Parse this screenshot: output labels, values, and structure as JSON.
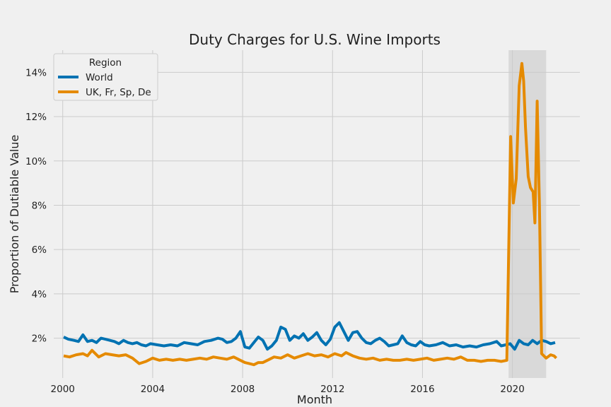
{
  "chart_data": {
    "type": "line",
    "title": "Duty Charges for U.S. Wine Imports",
    "xlabel": "Month",
    "ylabel": "Proportion of Dutiable Value",
    "x_range": [
      1999.6,
      2023.0
    ],
    "ylim": [
      0.2,
      15.0
    ],
    "x_ticks": [
      2000,
      2004,
      2008,
      2012,
      2016,
      2020
    ],
    "x_tick_labels": [
      "2000",
      "2004",
      "2008",
      "2012",
      "2016",
      "2020"
    ],
    "y_ticks": [
      2,
      4,
      6,
      8,
      10,
      12,
      14
    ],
    "y_tick_labels": [
      "2%",
      "4%",
      "6%",
      "8%",
      "10%",
      "12%",
      "14%"
    ],
    "grid": true,
    "legend": {
      "title": "Region",
      "placement": "top-left"
    },
    "highlight_span": {
      "x_start": 2019.83,
      "x_end": 2021.5,
      "color": "#d9d9d9"
    },
    "series": [
      {
        "name": "World",
        "color": "#0072b2",
        "x": [
          2000.04,
          2000.25,
          2000.5,
          2000.7,
          2000.9,
          2001.1,
          2001.3,
          2001.5,
          2001.7,
          2001.9,
          2002.1,
          2002.3,
          2002.5,
          2002.7,
          2002.9,
          2003.1,
          2003.3,
          2003.5,
          2003.7,
          2003.9,
          2004.2,
          2004.5,
          2004.8,
          2005.1,
          2005.4,
          2005.7,
          2006.0,
          2006.3,
          2006.6,
          2006.9,
          2007.1,
          2007.3,
          2007.5,
          2007.7,
          2007.9,
          2008.1,
          2008.3,
          2008.5,
          2008.7,
          2008.9,
          2009.1,
          2009.3,
          2009.5,
          2009.7,
          2009.9,
          2010.1,
          2010.3,
          2010.5,
          2010.7,
          2010.9,
          2011.1,
          2011.3,
          2011.5,
          2011.7,
          2011.9,
          2012.1,
          2012.3,
          2012.5,
          2012.7,
          2012.9,
          2013.1,
          2013.3,
          2013.5,
          2013.7,
          2013.9,
          2014.1,
          2014.3,
          2014.5,
          2014.7,
          2014.9,
          2015.1,
          2015.3,
          2015.5,
          2015.7,
          2015.9,
          2016.1,
          2016.3,
          2016.6,
          2016.9,
          2017.2,
          2017.5,
          2017.8,
          2018.1,
          2018.4,
          2018.7,
          2019.0,
          2019.3,
          2019.5,
          2019.7,
          2019.9,
          2020.1,
          2020.3,
          2020.5,
          2020.7,
          2020.9,
          2021.1,
          2021.3,
          2021.5,
          2021.7,
          2021.9
        ],
        "values": [
          2.05,
          1.95,
          1.9,
          1.85,
          2.15,
          1.85,
          1.9,
          1.8,
          2.0,
          1.95,
          1.9,
          1.85,
          1.75,
          1.9,
          1.8,
          1.75,
          1.8,
          1.7,
          1.65,
          1.75,
          1.7,
          1.65,
          1.7,
          1.65,
          1.8,
          1.75,
          1.7,
          1.85,
          1.9,
          2.0,
          1.95,
          1.8,
          1.85,
          2.0,
          2.3,
          1.6,
          1.55,
          1.8,
          2.05,
          1.9,
          1.5,
          1.65,
          1.9,
          2.5,
          2.4,
          1.9,
          2.1,
          2.0,
          2.2,
          1.9,
          2.05,
          2.25,
          1.9,
          1.7,
          1.95,
          2.5,
          2.7,
          2.3,
          1.9,
          2.25,
          2.3,
          2.0,
          1.8,
          1.75,
          1.9,
          2.0,
          1.85,
          1.65,
          1.7,
          1.75,
          2.1,
          1.8,
          1.7,
          1.65,
          1.85,
          1.7,
          1.65,
          1.7,
          1.8,
          1.65,
          1.7,
          1.6,
          1.65,
          1.6,
          1.7,
          1.75,
          1.85,
          1.65,
          1.7,
          1.75,
          1.5,
          1.9,
          1.75,
          1.7,
          1.9,
          1.75,
          1.9,
          1.85,
          1.75,
          1.8
        ]
      },
      {
        "name": "UK, Fr, Sp, De",
        "color": "#e58a00",
        "x": [
          2000.04,
          2000.3,
          2000.6,
          2000.9,
          2001.1,
          2001.3,
          2001.6,
          2001.9,
          2002.2,
          2002.5,
          2002.8,
          2003.1,
          2003.4,
          2003.7,
          2004.0,
          2004.3,
          2004.6,
          2004.9,
          2005.2,
          2005.5,
          2005.8,
          2006.1,
          2006.4,
          2006.7,
          2007.0,
          2007.3,
          2007.6,
          2007.9,
          2008.1,
          2008.3,
          2008.5,
          2008.7,
          2008.9,
          2009.1,
          2009.4,
          2009.7,
          2010.0,
          2010.3,
          2010.6,
          2010.9,
          2011.2,
          2011.5,
          2011.8,
          2012.1,
          2012.4,
          2012.6,
          2012.9,
          2013.2,
          2013.5,
          2013.8,
          2014.1,
          2014.4,
          2014.7,
          2015.0,
          2015.3,
          2015.6,
          2015.9,
          2016.2,
          2016.5,
          2016.8,
          2017.1,
          2017.4,
          2017.7,
          2018.0,
          2018.3,
          2018.6,
          2018.9,
          2019.2,
          2019.5,
          2019.75,
          2019.92,
          2020.04,
          2020.17,
          2020.3,
          2020.42,
          2020.5,
          2020.58,
          2020.7,
          2020.8,
          2020.92,
          2021.0,
          2021.1,
          2021.2,
          2021.3,
          2021.5,
          2021.7,
          2021.85,
          2021.95
        ],
        "values": [
          1.2,
          1.15,
          1.25,
          1.3,
          1.2,
          1.45,
          1.15,
          1.3,
          1.25,
          1.2,
          1.25,
          1.1,
          0.85,
          0.95,
          1.1,
          1.0,
          1.05,
          1.0,
          1.05,
          1.0,
          1.05,
          1.1,
          1.05,
          1.15,
          1.1,
          1.05,
          1.15,
          1.0,
          0.9,
          0.85,
          0.8,
          0.9,
          0.9,
          1.0,
          1.15,
          1.1,
          1.25,
          1.1,
          1.2,
          1.3,
          1.2,
          1.25,
          1.15,
          1.3,
          1.2,
          1.35,
          1.2,
          1.1,
          1.05,
          1.1,
          1.0,
          1.05,
          1.0,
          1.0,
          1.05,
          1.0,
          1.05,
          1.1,
          1.0,
          1.05,
          1.1,
          1.05,
          1.15,
          1.0,
          1.0,
          0.95,
          1.0,
          1.0,
          0.95,
          1.0,
          11.1,
          8.1,
          9.2,
          13.4,
          14.4,
          13.6,
          11.5,
          9.3,
          8.8,
          8.6,
          7.2,
          12.7,
          8.0,
          1.3,
          1.1,
          1.25,
          1.2,
          1.1
        ]
      }
    ]
  }
}
